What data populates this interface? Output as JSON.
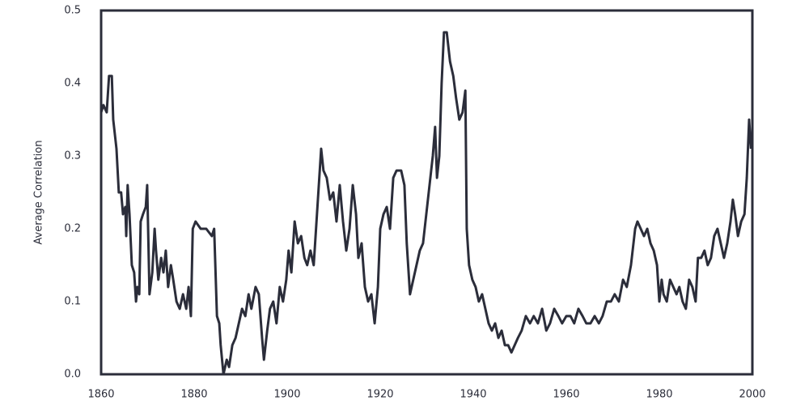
{
  "chart_data": {
    "type": "line",
    "y_label": "Average Correlation",
    "color": "#2b2d3a",
    "xlim": [
      1860,
      2000
    ],
    "xticks": [
      1860,
      1880,
      1900,
      1920,
      1940,
      1960,
      1980,
      2000
    ],
    "ylim": [
      0,
      0.5
    ],
    "yticks": [
      {
        "value": 0,
        "label": "0.0"
      },
      0.1,
      0.2,
      0.3,
      0.4,
      0.5
    ],
    "x": [
      1860.0,
      1860.5,
      1861.2,
      1861.7,
      1862.3,
      1862.6,
      1863.3,
      1863.8,
      1864.3,
      1864.7,
      1865.2,
      1865.4,
      1865.7,
      1866.1,
      1866.6,
      1867.1,
      1867.5,
      1867.8,
      1868.2,
      1868.5,
      1869.0,
      1869.6,
      1869.9,
      1870.4,
      1871.0,
      1871.5,
      1871.8,
      1872.3,
      1872.9,
      1873.4,
      1873.9,
      1874.4,
      1875.0,
      1875.5,
      1876.2,
      1876.9,
      1877.6,
      1878.3,
      1878.8,
      1879.3,
      1879.7,
      1880.3,
      1881.4,
      1882.6,
      1883.8,
      1884.3,
      1884.9,
      1885.4,
      1885.7,
      1886.3,
      1887.0,
      1887.5,
      1888.2,
      1888.9,
      1889.6,
      1890.3,
      1891.0,
      1891.7,
      1892.3,
      1893.2,
      1893.9,
      1894.6,
      1895.0,
      1895.7,
      1896.3,
      1897.0,
      1897.7,
      1898.4,
      1899.1,
      1899.8,
      1900.3,
      1900.9,
      1901.6,
      1902.3,
      1903.0,
      1903.7,
      1904.3,
      1905.0,
      1905.7,
      1906.4,
      1907.3,
      1907.8,
      1908.5,
      1909.2,
      1909.9,
      1910.6,
      1911.3,
      1912.0,
      1912.7,
      1913.4,
      1914.1,
      1914.8,
      1915.3,
      1916.0,
      1916.7,
      1917.4,
      1918.1,
      1918.8,
      1919.5,
      1920.0,
      1920.7,
      1921.4,
      1922.1,
      1922.8,
      1923.5,
      1924.5,
      1925.2,
      1925.7,
      1926.4,
      1927.1,
      1927.8,
      1928.5,
      1929.2,
      1929.9,
      1930.6,
      1931.3,
      1931.8,
      1932.2,
      1932.7,
      1933.2,
      1933.7,
      1934.3,
      1935.0,
      1935.7,
      1936.3,
      1937.0,
      1937.7,
      1938.3,
      1938.6,
      1939.1,
      1939.8,
      1940.5,
      1941.2,
      1941.9,
      1942.6,
      1943.3,
      1944.0,
      1944.7,
      1945.4,
      1946.1,
      1946.8,
      1947.5,
      1948.2,
      1948.9,
      1949.6,
      1950.4,
      1951.3,
      1952.2,
      1953.0,
      1953.9,
      1954.8,
      1955.7,
      1956.5,
      1957.4,
      1958.3,
      1959.1,
      1960.0,
      1960.9,
      1961.7,
      1962.6,
      1963.5,
      1964.3,
      1965.2,
      1966.1,
      1967.0,
      1967.8,
      1968.7,
      1969.6,
      1970.4,
      1971.3,
      1972.2,
      1973.0,
      1973.9,
      1974.8,
      1975.3,
      1976.0,
      1976.7,
      1977.4,
      1978.1,
      1978.8,
      1979.5,
      1980.0,
      1980.5,
      1980.9,
      1981.6,
      1982.3,
      1983.0,
      1983.7,
      1984.3,
      1985.0,
      1985.7,
      1986.4,
      1987.1,
      1987.8,
      1988.3,
      1989.0,
      1989.7,
      1990.4,
      1991.1,
      1991.8,
      1992.5,
      1993.2,
      1993.9,
      1994.6,
      1995.3,
      1995.8,
      1996.3,
      1996.9,
      1997.6,
      1998.3,
      1998.8,
      1999.3,
      1999.7
    ],
    "values": [
      0.36,
      0.37,
      0.36,
      0.41,
      0.41,
      0.35,
      0.31,
      0.25,
      0.25,
      0.22,
      0.23,
      0.19,
      0.26,
      0.22,
      0.15,
      0.14,
      0.1,
      0.12,
      0.11,
      0.21,
      0.22,
      0.23,
      0.26,
      0.11,
      0.14,
      0.2,
      0.17,
      0.13,
      0.16,
      0.14,
      0.17,
      0.12,
      0.15,
      0.13,
      0.1,
      0.09,
      0.11,
      0.09,
      0.12,
      0.08,
      0.2,
      0.21,
      0.2,
      0.2,
      0.19,
      0.2,
      0.08,
      0.07,
      0.04,
      0.0,
      0.02,
      0.01,
      0.04,
      0.05,
      0.07,
      0.09,
      0.08,
      0.11,
      0.09,
      0.12,
      0.11,
      0.05,
      0.02,
      0.06,
      0.09,
      0.1,
      0.07,
      0.12,
      0.1,
      0.13,
      0.17,
      0.14,
      0.21,
      0.18,
      0.19,
      0.16,
      0.15,
      0.17,
      0.15,
      0.22,
      0.31,
      0.28,
      0.27,
      0.24,
      0.25,
      0.21,
      0.26,
      0.21,
      0.17,
      0.2,
      0.26,
      0.22,
      0.16,
      0.18,
      0.12,
      0.1,
      0.11,
      0.07,
      0.12,
      0.2,
      0.22,
      0.23,
      0.2,
      0.27,
      0.28,
      0.28,
      0.26,
      0.18,
      0.11,
      0.13,
      0.15,
      0.17,
      0.18,
      0.22,
      0.26,
      0.3,
      0.34,
      0.27,
      0.3,
      0.4,
      0.47,
      0.47,
      0.43,
      0.41,
      0.38,
      0.35,
      0.36,
      0.39,
      0.2,
      0.15,
      0.13,
      0.12,
      0.1,
      0.11,
      0.09,
      0.07,
      0.06,
      0.07,
      0.05,
      0.06,
      0.04,
      0.04,
      0.03,
      0.04,
      0.05,
      0.06,
      0.08,
      0.07,
      0.08,
      0.07,
      0.09,
      0.06,
      0.07,
      0.09,
      0.08,
      0.07,
      0.08,
      0.08,
      0.07,
      0.09,
      0.08,
      0.07,
      0.07,
      0.08,
      0.07,
      0.08,
      0.1,
      0.1,
      0.11,
      0.1,
      0.13,
      0.12,
      0.15,
      0.2,
      0.21,
      0.2,
      0.19,
      0.2,
      0.18,
      0.17,
      0.15,
      0.1,
      0.13,
      0.11,
      0.1,
      0.13,
      0.12,
      0.11,
      0.12,
      0.1,
      0.09,
      0.13,
      0.12,
      0.1,
      0.16,
      0.16,
      0.17,
      0.15,
      0.16,
      0.19,
      0.2,
      0.18,
      0.16,
      0.18,
      0.21,
      0.24,
      0.22,
      0.19,
      0.21,
      0.22,
      0.27,
      0.35,
      0.31
    ]
  }
}
